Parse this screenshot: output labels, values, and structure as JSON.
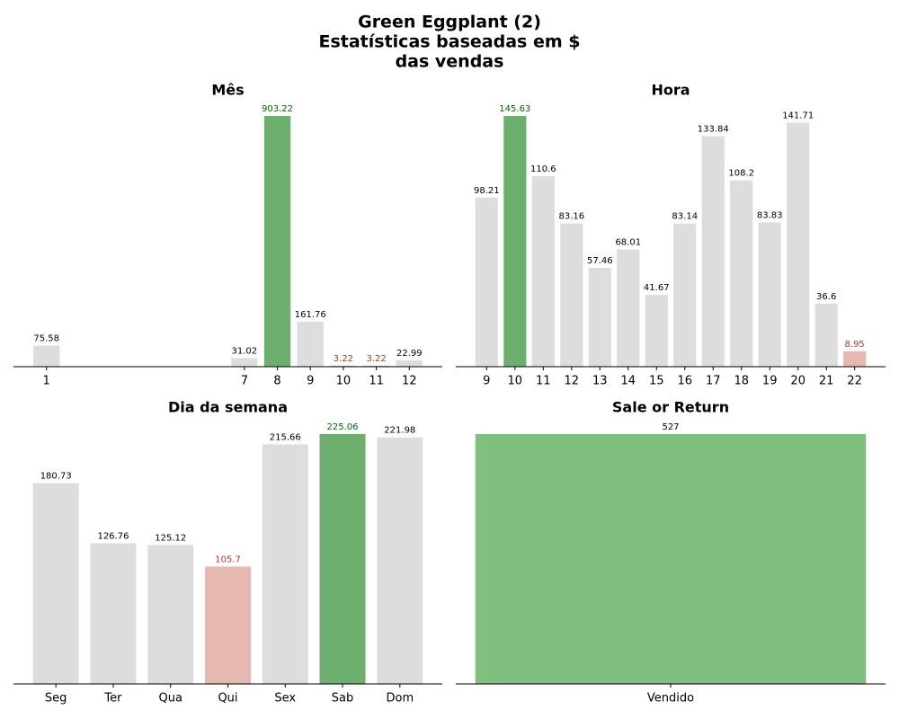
{
  "title": [
    "Green Eggplant (2)",
    "Estatísticas baseadas em $",
    "das vendas"
  ],
  "chart_data": [
    {
      "type": "bar",
      "title": "Mês",
      "x": [
        1,
        7,
        8,
        9,
        10,
        11,
        12
      ],
      "xlim": [
        0,
        13
      ],
      "xticks": [
        1,
        7,
        8,
        9,
        10,
        11,
        12
      ],
      "values": [
        75.58,
        31.02,
        903.22,
        161.76,
        3.22,
        3.22,
        22.99
      ],
      "ylim": [
        0,
        948.38
      ],
      "colors": [
        "#dddddd",
        "#dddddd",
        "#6daf6f",
        "#dddddd",
        "#e6b8b0",
        "#e6b8b0",
        "#dddddd"
      ],
      "label_colors": [
        "#000000",
        "#000000",
        "#006400",
        "#000000",
        "#b03a2e",
        "#b03a2e",
        "#000000"
      ]
    },
    {
      "type": "bar",
      "title": "Hora",
      "categories": [
        "9",
        "10",
        "11",
        "12",
        "13",
        "14",
        "15",
        "16",
        "17",
        "18",
        "19",
        "20",
        "21",
        "22"
      ],
      "values": [
        98.21,
        145.63,
        110.6,
        83.16,
        57.46,
        68.01,
        41.67,
        83.14,
        133.84,
        108.2,
        83.83,
        141.71,
        36.6,
        8.95
      ],
      "ylim": [
        0,
        152.91
      ],
      "colors": [
        "#dddddd",
        "#6daf6f",
        "#dddddd",
        "#dddddd",
        "#dddddd",
        "#dddddd",
        "#dddddd",
        "#dddddd",
        "#dddddd",
        "#dddddd",
        "#dddddd",
        "#dddddd",
        "#dddddd",
        "#e6b8b0"
      ],
      "label_colors": [
        "#000000",
        "#006400",
        "#000000",
        "#000000",
        "#000000",
        "#000000",
        "#000000",
        "#000000",
        "#000000",
        "#000000",
        "#000000",
        "#000000",
        "#000000",
        "#b03a2e"
      ]
    },
    {
      "type": "bar",
      "title": "Dia da semana",
      "categories": [
        "Seg",
        "Ter",
        "Qua",
        "Qui",
        "Sex",
        "Sab",
        "Dom"
      ],
      "values": [
        180.73,
        126.76,
        125.12,
        105.7,
        215.66,
        225.06,
        221.98
      ],
      "ylim": [
        0,
        236.31
      ],
      "colors": [
        "#dddddd",
        "#dddddd",
        "#dddddd",
        "#e6b8b0",
        "#dddddd",
        "#6daf6f",
        "#dddddd"
      ],
      "label_colors": [
        "#000000",
        "#000000",
        "#000000",
        "#b03a2e",
        "#000000",
        "#006400",
        "#000000"
      ]
    },
    {
      "type": "bar",
      "title": "Sale or Return",
      "categories": [
        "Vendido"
      ],
      "values": [
        527
      ],
      "ylim": [
        0,
        553.35
      ],
      "colors": [
        "#7fc080"
      ],
      "label_colors": [
        "#000000"
      ]
    }
  ]
}
